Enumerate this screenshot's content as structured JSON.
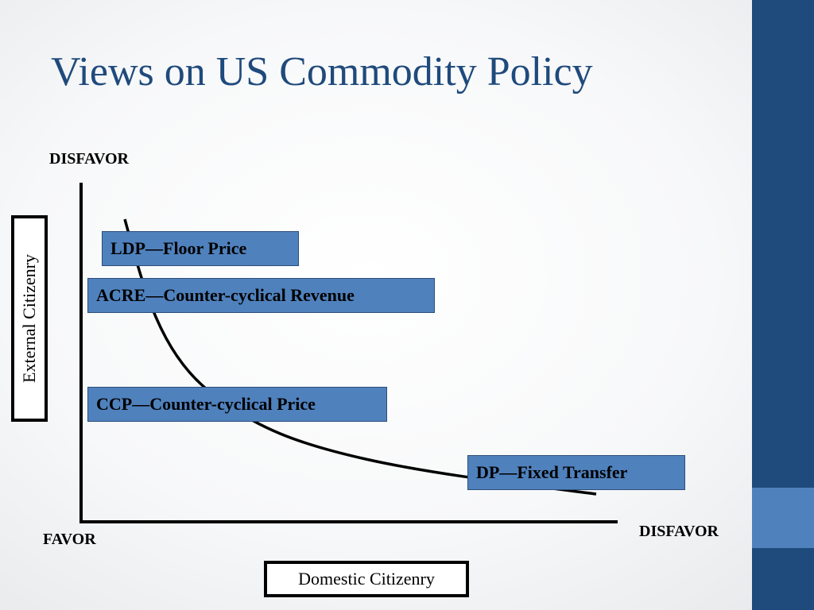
{
  "slide": {
    "title": "Views on US Commodity Policy",
    "colors": {
      "title": "#1f4a7c",
      "sidebar": "#1f4a7c",
      "sidebar_accent": "#4f81bd",
      "box_fill": "#4f81bd"
    }
  },
  "axes": {
    "y_top_label": "DISFAVOR",
    "origin_label": "FAVOR",
    "x_right_label": "DISFAVOR",
    "y_axis_title": "External Citizenry",
    "x_axis_title": "Domestic Citizenry"
  },
  "policies": [
    {
      "label": "LDP—Floor Price"
    },
    {
      "label": "ACRE—Counter-cyclical Revenue"
    },
    {
      "label": "CCP—Counter-cyclical Price"
    },
    {
      "label": "DP—Fixed Transfer"
    }
  ]
}
